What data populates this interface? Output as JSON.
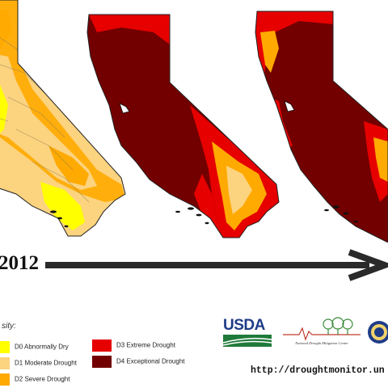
{
  "figure": {
    "start_year": "2012",
    "legend_title": "sity:",
    "legend": [
      {
        "code": "D0",
        "label": "D0 Abnormally Dry",
        "color": "#ffff00"
      },
      {
        "code": "D1",
        "label": "D1 Moderate Drought",
        "color": "#fcd37f"
      },
      {
        "code": "D2",
        "label": "D2 Severe Drought",
        "color": "#ffaa00"
      },
      {
        "code": "D3",
        "label": "D3 Extreme Drought",
        "color": "#e60000"
      },
      {
        "code": "D4",
        "label": "D4 Exceptional Drought",
        "color": "#730000"
      }
    ],
    "maps": [
      {
        "state": "California",
        "panel": "first",
        "dominant_category": "D1"
      },
      {
        "state": "California",
        "panel": "second",
        "dominant_category": "D4"
      },
      {
        "state": "California",
        "panel": "third",
        "dominant_category": "D4"
      }
    ],
    "logos": {
      "usda": "USDA",
      "ndmc": "National Drought Mitigation Center",
      "seal": "seal-icon"
    },
    "url": "http://droughtmonitor.un"
  }
}
